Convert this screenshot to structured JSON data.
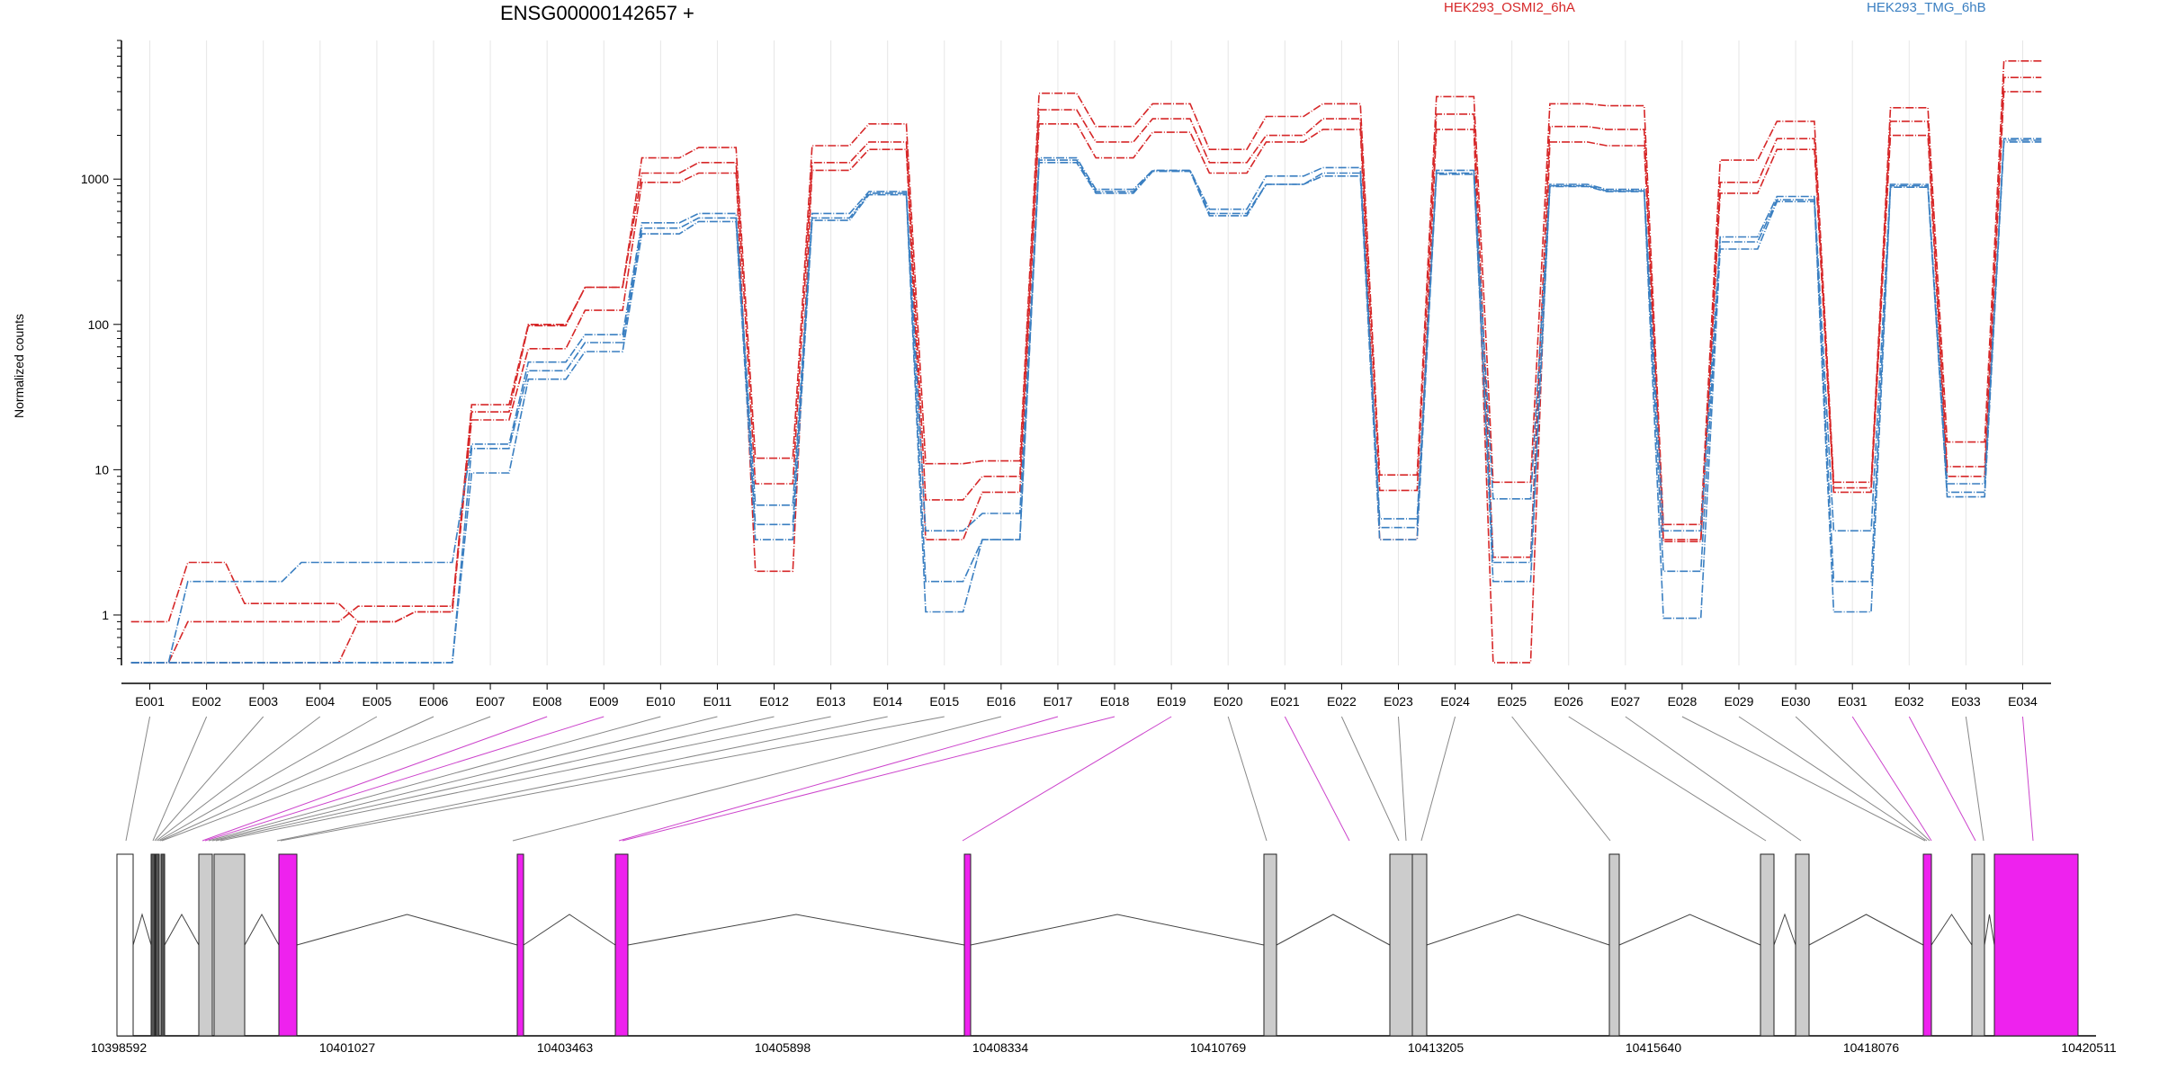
{
  "chart_data": {
    "type": "line",
    "title": "ENSG00000142657 +",
    "ylabel": "Normalized counts",
    "yscale": "log",
    "ylim": [
      0.45,
      9000
    ],
    "y_ticks": [
      "1",
      "10",
      "100",
      "1000"
    ],
    "y_tick_values": [
      1,
      10,
      100,
      1000
    ],
    "categories": [
      "E001",
      "E002",
      "E003",
      "E004",
      "E005",
      "E006",
      "E007",
      "E008",
      "E009",
      "E010",
      "E011",
      "E012",
      "E013",
      "E014",
      "E015",
      "E016",
      "E017",
      "E018",
      "E019",
      "E020",
      "E021",
      "E022",
      "E023",
      "E024",
      "E025",
      "E026",
      "E027",
      "E028",
      "E029",
      "E030",
      "E031",
      "E032",
      "E033",
      "E034"
    ],
    "legend": [
      {
        "name": "HEK293_OSMI2_6hA",
        "color": "#d62728"
      },
      {
        "name": "HEK293_TMG_6hB",
        "color": "#3a7fc1"
      }
    ],
    "series": [
      {
        "group": "HEK293_OSMI2_6hA",
        "color": "#d62728",
        "values": [
          0.9,
          2.3,
          1.2,
          1.2,
          0.9,
          1.05,
          28,
          100,
          180,
          1400,
          1650,
          12,
          1700,
          2400,
          11,
          11.5,
          3900,
          2300,
          3300,
          1600,
          2700,
          3300,
          9.2,
          3700,
          8.2,
          3300,
          3200,
          4.2,
          1350,
          2500,
          8.2,
          3100,
          15.5,
          6500
        ]
      },
      {
        "group": "HEK293_OSMI2_6hA",
        "color": "#d62728",
        "values": [
          0.47,
          0.9,
          0.9,
          0.9,
          1.15,
          1.15,
          25,
          98,
          180,
          1100,
          1300,
          8,
          1300,
          1800,
          6.2,
          9,
          3000,
          1800,
          2600,
          1300,
          2000,
          2600,
          7.2,
          2800,
          2.5,
          2300,
          2200,
          3.2,
          950,
          1900,
          7.5,
          2500,
          10.5,
          5000
        ]
      },
      {
        "group": "HEK293_OSMI2_6hA",
        "color": "#d62728",
        "values": [
          0.47,
          0.47,
          0.47,
          0.47,
          0.9,
          1.05,
          22,
          68,
          125,
          950,
          1100,
          2,
          1150,
          1600,
          3.3,
          7,
          2400,
          1400,
          2100,
          1100,
          1800,
          2200,
          3.3,
          2200,
          0.47,
          1800,
          1700,
          3.3,
          800,
          1600,
          7,
          2000,
          9,
          4000
        ]
      },
      {
        "group": "HEK293_TMG_6hB",
        "color": "#3a7fc1",
        "values": [
          0.47,
          1.7,
          1.7,
          2.3,
          2.3,
          2.3,
          15,
          55,
          85,
          500,
          580,
          5.7,
          580,
          820,
          3.8,
          5,
          1400,
          850,
          1150,
          620,
          1050,
          1200,
          4.6,
          1150,
          6.3,
          920,
          850,
          3.8,
          400,
          760,
          3.8,
          920,
          8,
          1900
        ]
      },
      {
        "group": "HEK293_TMG_6hB",
        "color": "#3a7fc1",
        "values": [
          0.47,
          0.47,
          0.47,
          0.47,
          0.47,
          0.47,
          14,
          48,
          75,
          460,
          540,
          4.2,
          540,
          800,
          1.7,
          3.3,
          1350,
          820,
          1140,
          580,
          920,
          1100,
          4,
          1100,
          2.3,
          900,
          830,
          2,
          370,
          720,
          1.7,
          900,
          7,
          1850
        ]
      },
      {
        "group": "HEK293_TMG_6hB",
        "color": "#3a7fc1",
        "values": [
          0.47,
          0.47,
          0.47,
          0.47,
          0.47,
          0.47,
          9.5,
          42,
          65,
          420,
          510,
          3.3,
          520,
          780,
          1.05,
          3.3,
          1300,
          800,
          1130,
          560,
          920,
          1050,
          3.3,
          1080,
          1.7,
          890,
          820,
          0.95,
          330,
          700,
          1.05,
          880,
          6.5,
          1800
        ]
      }
    ],
    "exon_label_color": "#ff33ff",
    "exon_colors": {
      "default": "#cccccc",
      "highlight": "#ee22ee",
      "empty": "#ffffff"
    },
    "genomic_coordinates": [
      "10398592",
      "10401027",
      "10403463",
      "10405898",
      "10408334",
      "10410769",
      "10413205",
      "10415640",
      "10418076",
      "10420511"
    ]
  }
}
